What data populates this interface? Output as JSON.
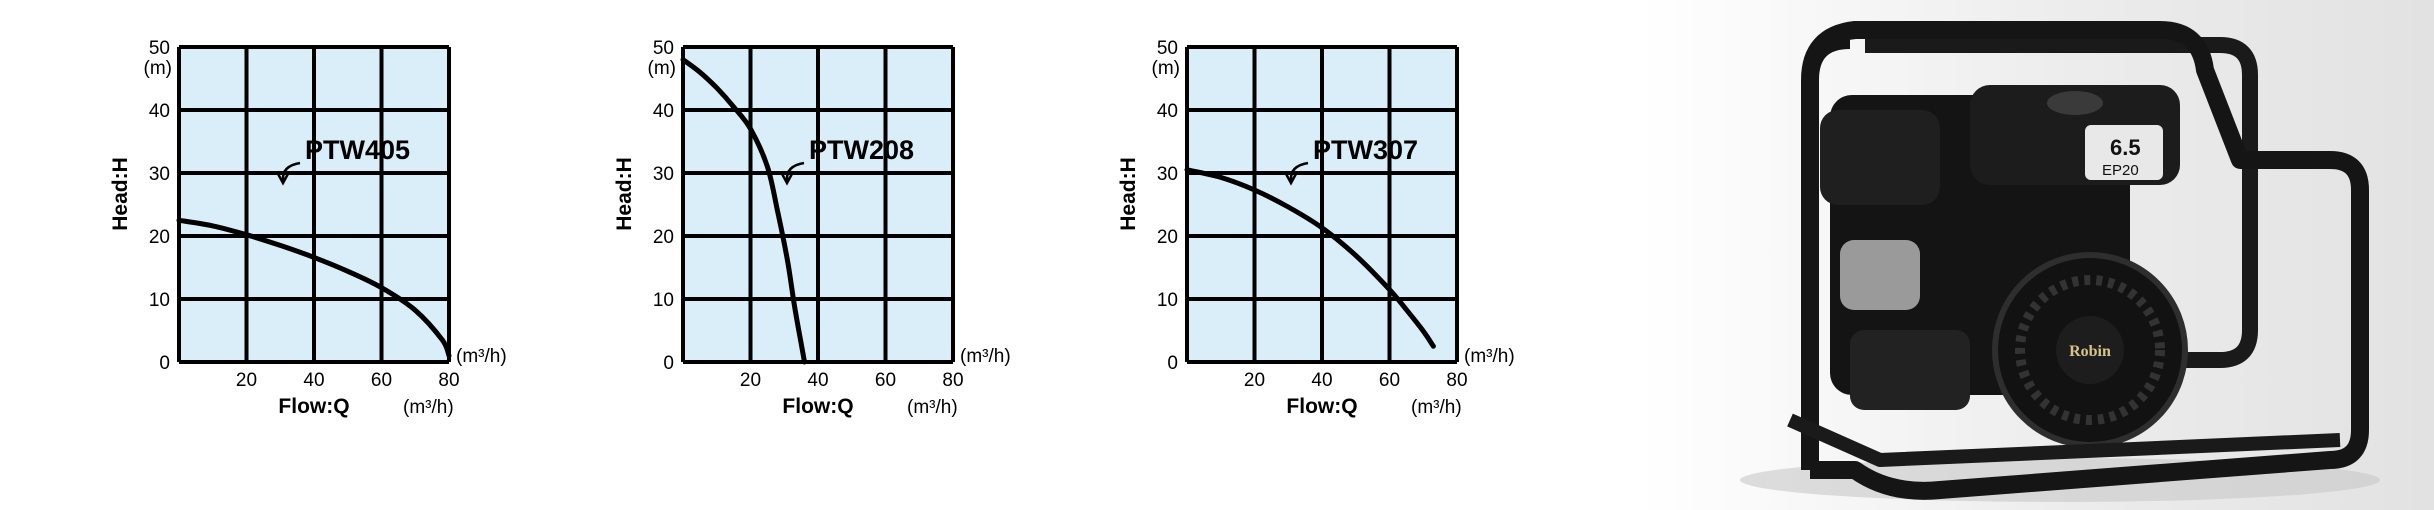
{
  "chart_data": [
    {
      "type": "line",
      "series": [
        {
          "name": "PTW405",
          "x": [
            0,
            10,
            20,
            30,
            40,
            50,
            60,
            70,
            78,
            80
          ],
          "y": [
            22.5,
            21.6,
            20.2,
            18.5,
            16.6,
            14.4,
            11.8,
            8.2,
            3.5,
            1.0
          ]
        }
      ],
      "xticks": [
        "20",
        "40",
        "60",
        "80"
      ],
      "yticks": [
        "0",
        "10",
        "20",
        "30",
        "40",
        "50"
      ],
      "xlim": [
        0,
        80
      ],
      "ylim": [
        0,
        50
      ],
      "grid": true,
      "x_unit_right": "(m³/h)",
      "x_unit_below": "(m³/h)",
      "y_unit": "(m)",
      "xlabel": "Flow:Q",
      "ylabel": "Head:H",
      "annotation": {
        "text": "PTW405",
        "x": 30,
        "y": 29
      }
    },
    {
      "type": "line",
      "series": [
        {
          "name": "PTW208",
          "x": [
            0,
            5,
            10,
            15,
            20,
            25,
            28,
            31,
            33,
            35,
            36
          ],
          "y": [
            48,
            46,
            43.5,
            40.5,
            37,
            31,
            24,
            16,
            9,
            3,
            0
          ]
        }
      ],
      "xticks": [
        "20",
        "40",
        "60",
        "80"
      ],
      "yticks": [
        "0",
        "10",
        "20",
        "30",
        "40",
        "50"
      ],
      "xlim": [
        0,
        80
      ],
      "ylim": [
        0,
        50
      ],
      "grid": true,
      "x_unit_right": "(m³/h)",
      "x_unit_below": "(m³/h)",
      "y_unit": "(m)",
      "xlabel": "Flow:Q",
      "ylabel": "Head:H",
      "annotation": {
        "text": "PTW208",
        "x": 30,
        "y": 29
      }
    },
    {
      "type": "line",
      "series": [
        {
          "name": "PTW307",
          "x": [
            0,
            10,
            20,
            30,
            40,
            50,
            60,
            65,
            70,
            73
          ],
          "y": [
            30.5,
            29.3,
            27.3,
            24.6,
            21.3,
            16.9,
            11.5,
            8.3,
            4.9,
            2.5
          ]
        }
      ],
      "xticks": [
        "20",
        "40",
        "60",
        "80"
      ],
      "yticks": [
        "0",
        "10",
        "20",
        "30",
        "40",
        "50"
      ],
      "xlim": [
        0,
        80
      ],
      "ylim": [
        0,
        50
      ],
      "grid": true,
      "x_unit_right": "(m³/h)",
      "x_unit_below": "(m³/h)",
      "y_unit": "(m)",
      "xlabel": "Flow:Q",
      "ylabel": "Head:H",
      "annotation": {
        "text": "PTW307",
        "x": 30,
        "y": 29
      }
    }
  ],
  "product_image": {
    "nameplate_model": "6.5",
    "nameplate_engine": "EP20",
    "brand": "Robin",
    "colors": {
      "frame": "#1a1a1a",
      "engine": "#141414",
      "metal": "#9a9a9a"
    }
  }
}
